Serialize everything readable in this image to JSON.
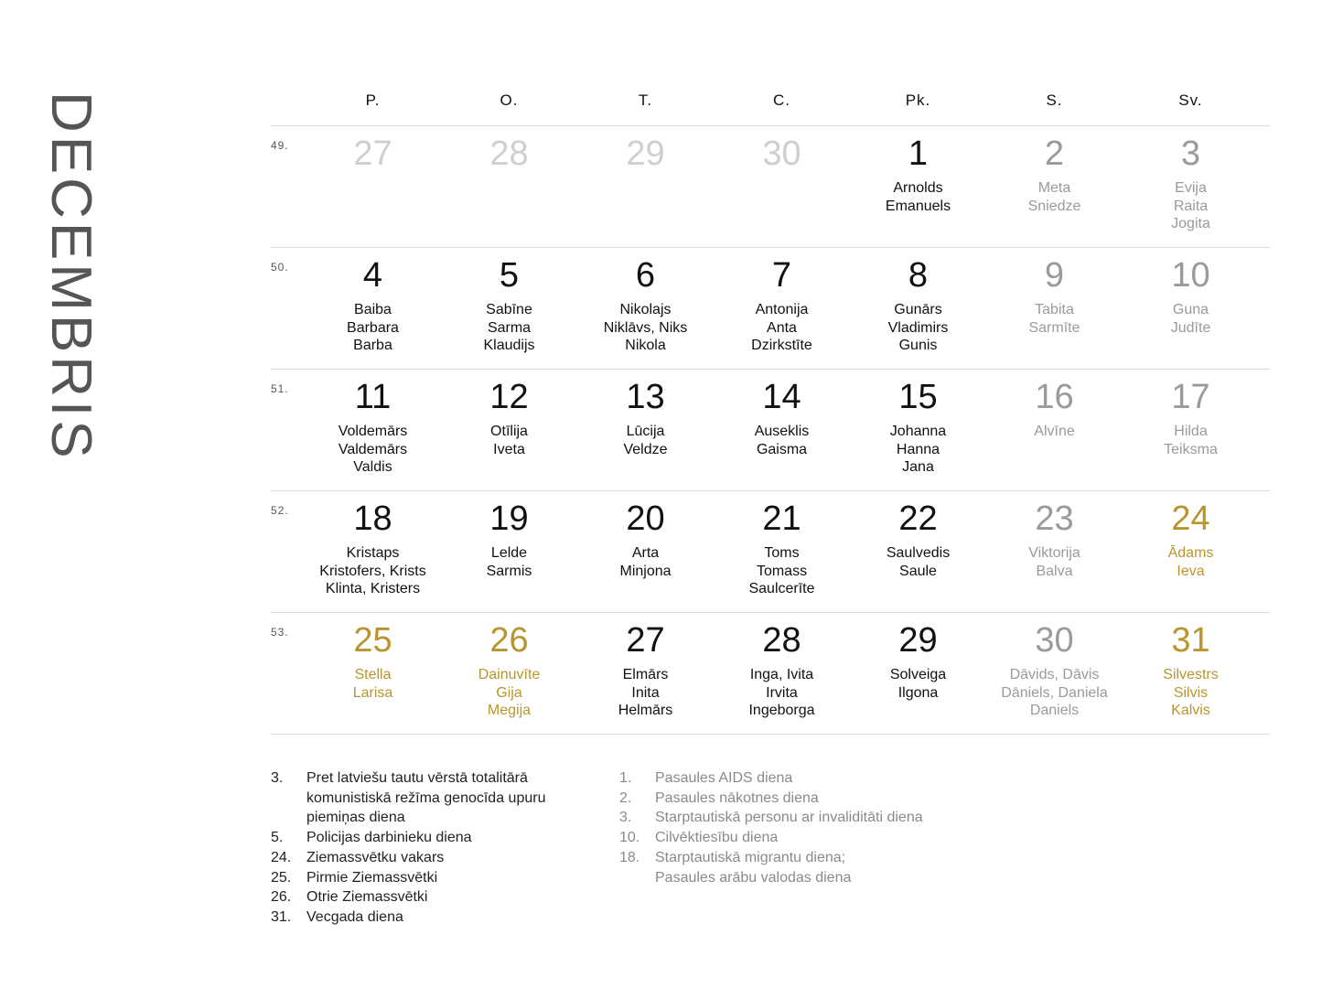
{
  "month": "DECEMBRIS",
  "weekdays": [
    "P.",
    "O.",
    "T.",
    "C.",
    "Pk.",
    "S.",
    "Sv."
  ],
  "colors": {
    "normal": "#111111",
    "saturday": "#9a9a9a",
    "other_month": "#cfcfcf",
    "holiday": "#b8952e",
    "title": "#555555"
  },
  "weeks": [
    {
      "number": "49.",
      "days": [
        {
          "day": "27",
          "style": "other",
          "names": []
        },
        {
          "day": "28",
          "style": "other",
          "names": []
        },
        {
          "day": "29",
          "style": "other",
          "names": []
        },
        {
          "day": "30",
          "style": "other",
          "names": []
        },
        {
          "day": "1",
          "style": "normal",
          "names": [
            "Arnolds",
            "Emanuels"
          ]
        },
        {
          "day": "2",
          "style": "sat",
          "names": [
            "Meta",
            "Sniedze"
          ]
        },
        {
          "day": "3",
          "style": "sat",
          "names": [
            "Evija",
            "Raita",
            "Jogita"
          ]
        }
      ]
    },
    {
      "number": "50.",
      "days": [
        {
          "day": "4",
          "style": "normal",
          "names": [
            "Baiba",
            "Barbara",
            "Barba"
          ]
        },
        {
          "day": "5",
          "style": "normal",
          "names": [
            "Sabīne",
            "Sarma",
            "Klaudijs"
          ]
        },
        {
          "day": "6",
          "style": "normal",
          "names": [
            "Nikolajs",
            "Niklāvs, Niks",
            "Nikola"
          ]
        },
        {
          "day": "7",
          "style": "normal",
          "names": [
            "Antonija",
            "Anta",
            "Dzirkstīte"
          ]
        },
        {
          "day": "8",
          "style": "normal",
          "names": [
            "Gunārs",
            "Vladimirs",
            "Gunis"
          ]
        },
        {
          "day": "9",
          "style": "sat",
          "names": [
            "Tabita",
            "Sarmīte"
          ]
        },
        {
          "day": "10",
          "style": "sat",
          "names": [
            "Guna",
            "Judīte"
          ]
        }
      ]
    },
    {
      "number": "51.",
      "days": [
        {
          "day": "11",
          "style": "normal",
          "names": [
            "Voldemārs",
            "Valdemārs",
            "Valdis"
          ]
        },
        {
          "day": "12",
          "style": "normal",
          "names": [
            "Otīlija",
            "Iveta"
          ]
        },
        {
          "day": "13",
          "style": "normal",
          "names": [
            "Lūcija",
            "Veldze"
          ]
        },
        {
          "day": "14",
          "style": "normal",
          "names": [
            "Auseklis",
            "Gaisma"
          ]
        },
        {
          "day": "15",
          "style": "normal",
          "names": [
            "Johanna",
            "Hanna",
            "Jana"
          ]
        },
        {
          "day": "16",
          "style": "sat",
          "names": [
            "Alvīne"
          ]
        },
        {
          "day": "17",
          "style": "sat",
          "names": [
            "Hilda",
            "Teiksma"
          ]
        }
      ]
    },
    {
      "number": "52.",
      "days": [
        {
          "day": "18",
          "style": "normal",
          "names": [
            "Kristaps",
            "Kristofers, Krists",
            "Klinta, Kristers"
          ]
        },
        {
          "day": "19",
          "style": "normal",
          "names": [
            "Lelde",
            "Sarmis"
          ]
        },
        {
          "day": "20",
          "style": "normal",
          "names": [
            "Arta",
            "Minjona"
          ]
        },
        {
          "day": "21",
          "style": "normal",
          "names": [
            "Toms",
            "Tomass",
            "Saulcerīte"
          ]
        },
        {
          "day": "22",
          "style": "normal",
          "names": [
            "Saulvedis",
            "Saule"
          ]
        },
        {
          "day": "23",
          "style": "sat",
          "names": [
            "Viktorija",
            "Balva"
          ]
        },
        {
          "day": "24",
          "style": "holiday",
          "names": [
            "Ādams",
            "Ieva"
          ]
        }
      ]
    },
    {
      "number": "53.",
      "days": [
        {
          "day": "25",
          "style": "holiday",
          "names": [
            "Stella",
            "Larisa"
          ]
        },
        {
          "day": "26",
          "style": "holiday",
          "names": [
            "Dainuvīte",
            "Gija",
            "Megija"
          ]
        },
        {
          "day": "27",
          "style": "normal",
          "names": [
            "Elmārs",
            "Inita",
            "Helmārs"
          ]
        },
        {
          "day": "28",
          "style": "normal",
          "names": [
            "Inga, Ivita",
            "Irvita",
            "Ingeborga"
          ]
        },
        {
          "day": "29",
          "style": "normal",
          "names": [
            "Solveiga",
            "Ilgona"
          ]
        },
        {
          "day": "30",
          "style": "sat",
          "names": [
            "Dāvids, Dāvis",
            "Dāniels, Daniela",
            "Daniels"
          ]
        },
        {
          "day": "31",
          "style": "holiday",
          "names": [
            "Silvestrs",
            "Silvis",
            "Kalvis"
          ]
        }
      ]
    }
  ],
  "notes_left": [
    {
      "n": "3.",
      "text": "Pret latviešu tautu vērstā totalitārā komunistiskā režīma genocīda upuru piemiņas diena"
    },
    {
      "n": "5.",
      "text": "Policijas darbinieku diena"
    },
    {
      "n": "24.",
      "text": "Ziemassvētku vakars"
    },
    {
      "n": "25.",
      "text": "Pirmie Ziemassvētki"
    },
    {
      "n": "26.",
      "text": "Otrie Ziemassvētki"
    },
    {
      "n": "31.",
      "text": "Vecgada diena"
    }
  ],
  "notes_right": [
    {
      "n": "1.",
      "text": "Pasaules AIDS diena"
    },
    {
      "n": "2.",
      "text": "Pasaules nākotnes diena"
    },
    {
      "n": "3.",
      "text": "Starptautiskā personu ar invaliditāti diena"
    },
    {
      "n": "10.",
      "text": "Cilvēktiesību diena"
    },
    {
      "n": "18.",
      "text": "Starptautiskā migrantu diena;\nPasaules arābu valodas diena"
    }
  ]
}
